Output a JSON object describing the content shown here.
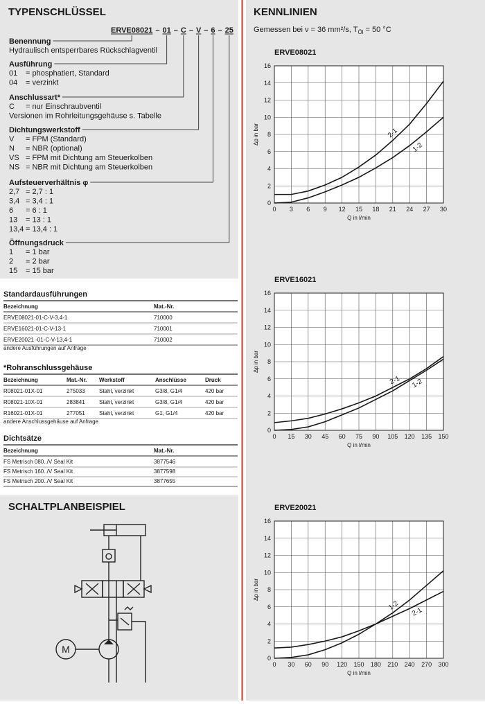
{
  "typekey": {
    "title": "TYPENSCHLÜSSEL",
    "code": {
      "parts": [
        "ERVE08021",
        "01",
        "C",
        "V",
        "6",
        "25"
      ],
      "separator": "–"
    },
    "sections": [
      {
        "heading": "Benennung",
        "items": [
          {
            "text": "Hydraulisch entsperrbares Rückschlagventil"
          }
        ]
      },
      {
        "heading": "Ausführung",
        "items": [
          {
            "code": "01",
            "text": "= phosphatiert, Standard"
          },
          {
            "code": "04",
            "text": "= verzinkt"
          }
        ]
      },
      {
        "heading": "Anschlussart*",
        "items": [
          {
            "code": "C",
            "text": "= nur Einschraubventil"
          },
          {
            "text": "Versionen im Rohrleitungsgehäuse s. Tabelle"
          }
        ]
      },
      {
        "heading": "Dichtungswerkstoff",
        "items": [
          {
            "code": "V",
            "text": "= FPM (Standard)"
          },
          {
            "code": "N",
            "text": "= NBR (optional)"
          },
          {
            "code": "VS",
            "text": "= FPM mit Dichtung am Steuerkolben"
          },
          {
            "code": "NS",
            "text": "= NBR mit Dichtung am Steuerkolben"
          }
        ]
      },
      {
        "heading": "Aufsteuerverhältnis φ",
        "items": [
          {
            "code": "2,7",
            "text": "=   2,7 : 1"
          },
          {
            "code": "3,4",
            "text": "=   3,4 : 1"
          },
          {
            "code": "6",
            "text": "=   6    : 1"
          },
          {
            "code": "13",
            "text": "= 13    : 1"
          },
          {
            "code": "13,4",
            "text": "= 13,4 : 1"
          }
        ]
      },
      {
        "heading": "Öffnungsdruck",
        "items": [
          {
            "code": "1",
            "text": "=   1 bar"
          },
          {
            "code": "2",
            "text": "=   2 bar"
          },
          {
            "code": "15",
            "text": "= 15 bar"
          }
        ]
      }
    ]
  },
  "tables": [
    {
      "title": "Standardausführungen",
      "columns": [
        "Bezeichnung",
        "Mat.-Nr."
      ],
      "rows": [
        [
          "ERVE08021-01-C-V-3,4-1",
          "710000"
        ],
        [
          "ERVE16021-01-C-V-13-1",
          "710001"
        ],
        [
          "ERVE20021 -01-C-V-13,4-1",
          "710002"
        ]
      ],
      "note": "andere Ausführungen auf Anfrage"
    },
    {
      "title": "*Rohranschlussgehäuse",
      "columns": [
        "Bezeichnung",
        "Mat.-Nr.",
        "Werkstoff",
        "Anschlüsse",
        "Druck"
      ],
      "rows": [
        [
          "R08021-01X-01",
          "275033",
          "Stahl, verzinkt",
          "G3/8, G1/4",
          "420 bar"
        ],
        [
          "R08021-10X-01",
          "283841",
          "Stahl, verzinkt",
          "G3/8, G1/4",
          "420 bar"
        ],
        [
          "R16021-01X-01",
          "277051",
          "Stahl, verzinkt",
          "G1,    G1/4",
          "420 bar"
        ]
      ],
      "note": "andere Anschlussgehäuse auf Anfrage"
    },
    {
      "title": "Dichtsätze",
      "columns": [
        "Bezeichnung",
        "Mat.-Nr."
      ],
      "rows": [
        [
          "FS Metrisch 080../V Seal Kit",
          "3877546"
        ],
        [
          "FS Metrisch 160../V Seal Kit",
          "3877598"
        ],
        [
          "FS Metrisch 200../V Seal Kit",
          "3877655"
        ]
      ]
    }
  ],
  "schematic": {
    "title": "SCHALTPLANBEISPIEL",
    "motor": "M"
  },
  "curves": {
    "title": "KENNLINIEN",
    "measurement": {
      "text": "Gemessen bei ν = 36 mm²/s, T",
      "sub": "Öl",
      "rest": " = 50 °C"
    }
  },
  "chart_data": [
    {
      "type": "line",
      "title": "ERVE08021",
      "x_label": "Q in l/min",
      "y_label": "Δp in bar",
      "x": [
        0,
        3,
        6,
        9,
        12,
        15,
        18,
        21,
        24,
        27,
        30
      ],
      "xlim": [
        0,
        30
      ],
      "xticks": [
        0,
        3,
        6,
        9,
        12,
        15,
        18,
        21,
        24,
        27,
        30
      ],
      "ylim": [
        0,
        16
      ],
      "yticks": [
        0,
        2,
        4,
        6,
        8,
        10,
        12,
        14,
        16
      ],
      "grid": true,
      "series": [
        {
          "name": "2-1",
          "color": "#1a1a1a",
          "values": [
            1.0,
            1.0,
            1.4,
            2.1,
            3.0,
            4.2,
            5.6,
            7.3,
            9.2,
            11.6,
            14.2
          ]
        },
        {
          "name": "1-2",
          "color": "#1a1a1a",
          "values": [
            0,
            0.1,
            0.6,
            1.3,
            2.1,
            3.0,
            4.1,
            5.3,
            6.7,
            8.3,
            10.0
          ]
        }
      ]
    },
    {
      "type": "line",
      "title": "ERVE16021",
      "x_label": "Q in l/min",
      "y_label": "Δp in bar",
      "x": [
        0,
        15,
        30,
        45,
        60,
        75,
        90,
        105,
        120,
        135,
        150
      ],
      "xlim": [
        0,
        150
      ],
      "xticks": [
        0,
        15,
        30,
        45,
        60,
        75,
        90,
        105,
        120,
        135,
        150
      ],
      "ylim": [
        0,
        16
      ],
      "yticks": [
        0,
        2,
        4,
        6,
        8,
        10,
        12,
        14,
        16
      ],
      "grid": true,
      "series": [
        {
          "name": "2-1",
          "color": "#1a1a1a",
          "values": [
            0.9,
            1.1,
            1.4,
            1.9,
            2.5,
            3.2,
            4.0,
            5.0,
            6.0,
            7.2,
            8.6
          ]
        },
        {
          "name": "1-2",
          "color": "#1a1a1a",
          "values": [
            0,
            0.1,
            0.4,
            1.0,
            1.8,
            2.6,
            3.6,
            4.6,
            5.8,
            7.0,
            8.3
          ]
        }
      ]
    },
    {
      "type": "line",
      "title": "ERVE20021",
      "x_label": "Q in l/min",
      "y_label": "Δp in bar",
      "x": [
        0,
        30,
        60,
        90,
        120,
        150,
        180,
        210,
        240,
        270,
        300
      ],
      "xlim": [
        0,
        300
      ],
      "xticks": [
        0,
        30,
        60,
        90,
        120,
        150,
        180,
        210,
        240,
        270,
        300
      ],
      "ylim": [
        0,
        16
      ],
      "yticks": [
        0,
        2,
        4,
        6,
        8,
        10,
        12,
        14,
        16
      ],
      "grid": true,
      "series": [
        {
          "name": "1-2",
          "color": "#1a1a1a",
          "values": [
            0,
            0.1,
            0.4,
            1.0,
            1.8,
            2.8,
            4.0,
            5.3,
            6.8,
            8.5,
            10.2
          ]
        },
        {
          "name": "2-1",
          "color": "#1a1a1a",
          "values": [
            1.2,
            1.3,
            1.6,
            2.0,
            2.5,
            3.2,
            4.0,
            4.9,
            5.8,
            6.8,
            7.8
          ]
        }
      ]
    }
  ]
}
